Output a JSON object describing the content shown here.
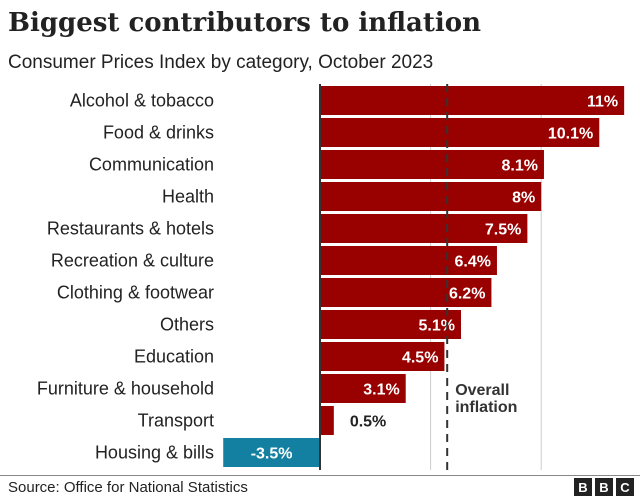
{
  "chart_data": {
    "type": "bar",
    "orientation": "horizontal",
    "title": "Biggest contributors to inflation",
    "subtitle": "Consumer Prices Index by category, October 2023",
    "categories": [
      "Alcohol & tobacco",
      "Food & drinks",
      "Communication",
      "Health",
      "Restaurants & hotels",
      "Recreation & culture",
      "Clothing & footwear",
      "Others",
      "Education",
      "Furniture & household",
      "Transport",
      "Housing & bills"
    ],
    "values": [
      11,
      10.1,
      8.1,
      8,
      7.5,
      6.4,
      6.2,
      5.1,
      4.5,
      3.1,
      0.5,
      -3.5
    ],
    "data_labels": [
      "11%",
      "10.1%",
      "8.1%",
      "8%",
      "7.5%",
      "6.4%",
      "6.2%",
      "5.1%",
      "4.5%",
      "3.1%",
      "0.5%",
      "-3.5%"
    ],
    "xlim": [
      -3.5,
      11
    ],
    "grid": true,
    "gridlines": [
      4,
      8
    ],
    "reference_line": {
      "value": 4.6,
      "label": "Overall inflation",
      "label_lines": [
        "Overall",
        "inflation"
      ]
    },
    "colors": {
      "positive": "#990000",
      "negative": "#1380A1"
    }
  },
  "footer": {
    "source": "Source: Office for National Statistics",
    "logo": [
      "B",
      "B",
      "C"
    ]
  }
}
